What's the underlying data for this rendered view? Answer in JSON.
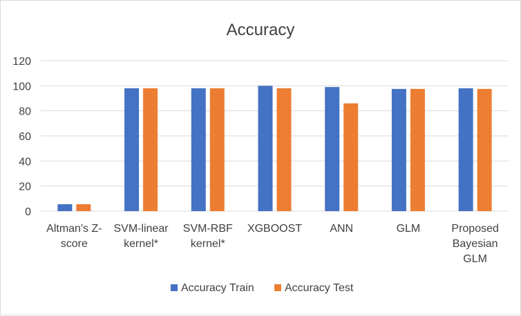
{
  "chart_data": {
    "type": "bar",
    "title": "Accuracy",
    "xlabel": "",
    "ylabel": "",
    "ylim": [
      0,
      120
    ],
    "yticks": [
      0,
      20,
      40,
      60,
      80,
      100,
      120
    ],
    "grid": true,
    "legend_position": "bottom",
    "categories": [
      [
        "Altman's Z-",
        "score"
      ],
      [
        "SVM-linear",
        "kernel*"
      ],
      [
        "SVM-RBF",
        "kernel*"
      ],
      [
        "XGBOOST"
      ],
      [
        "ANN"
      ],
      [
        "GLM"
      ],
      [
        "Proposed",
        "Bayesian",
        "GLM"
      ]
    ],
    "series": [
      {
        "name": "Accuracy Train",
        "color": "#4472c4",
        "values": [
          5.5,
          98,
          98,
          100,
          99,
          97.5,
          98
        ]
      },
      {
        "name": "Accuracy Test",
        "color": "#ed7d31",
        "values": [
          5.5,
          98,
          98,
          98,
          86,
          97.5,
          97.5
        ]
      }
    ]
  }
}
